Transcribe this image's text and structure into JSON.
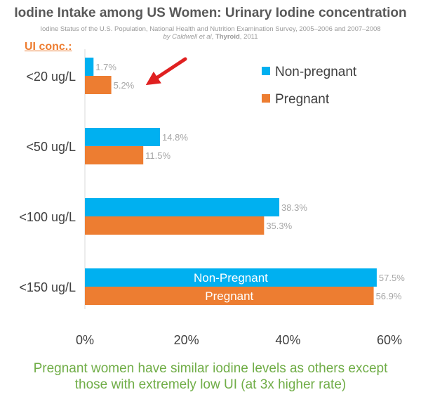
{
  "title": "Iodine Intake among US Women: Urinary Iodine concentration",
  "source": {
    "line1": "Iodine Status of the U.S. Population, National Health and Nutrition Examination Survey, 2005–2006 and 2007–2008",
    "by": "by Caldwell ",
    "etal": "et al",
    "comma": ", ",
    "journal": "Thyroid",
    "year": ", 2011"
  },
  "caption_line1": "Pregnant women have similar iodine levels as others except",
  "caption_line2": "those with extremely low UI (at 3x higher rate)",
  "colors": {
    "non_pregnant": "#00b0f0",
    "pregnant": "#ed7d31",
    "arrow": "#e02020",
    "caption": "#70ad47"
  },
  "chart_data": {
    "type": "bar",
    "orientation": "horizontal",
    "group_label": "UI conc.:",
    "categories": [
      "<20 ug/L",
      "<50 ug/L",
      "<100 ug/L",
      "<150 ug/L"
    ],
    "series": [
      {
        "name": "Non-pregnant",
        "values": [
          1.7,
          14.8,
          38.3,
          57.5
        ],
        "labels": [
          "1.7%",
          "14.8%",
          "38.3%",
          "57.5%"
        ],
        "inbar_label": "Non-Pregnant"
      },
      {
        "name": "Pregnant",
        "values": [
          5.2,
          11.5,
          35.3,
          56.9
        ],
        "labels": [
          "5.2%",
          "11.5%",
          "35.3%",
          "56.9%"
        ],
        "inbar_label": "Pregnant"
      }
    ],
    "xlim": [
      0,
      60
    ],
    "xticks": [
      "0%",
      "20%",
      "40%",
      "60%"
    ],
    "legend_position": "top-right",
    "grid": false,
    "annotation": "red arrow pointing to 5.2%"
  }
}
